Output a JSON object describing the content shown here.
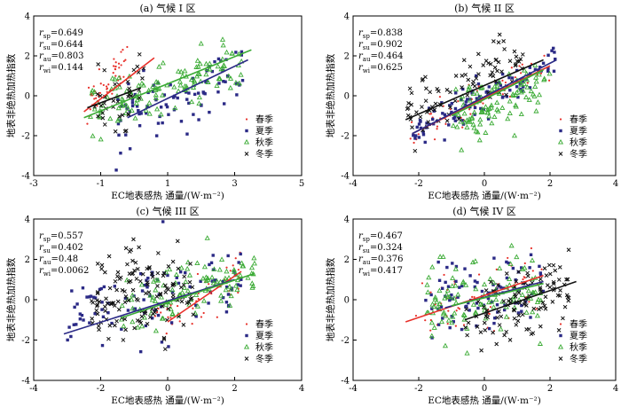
{
  "figure": {
    "title": ""
  },
  "chart_data": [
    {
      "type": "scatter",
      "title": "(a) 气候 I 区",
      "xlabel": "EC地表感热 通量/(W·m⁻²)",
      "ylabel": "地表非绝热加热指数",
      "xlim": [
        -3,
        5
      ],
      "ylim": [
        -4,
        4
      ],
      "xticks": [
        -3,
        -1,
        1,
        3,
        5
      ],
      "yticks": [
        -4,
        -2,
        0,
        2,
        4
      ],
      "stats": [
        {
          "sym": "r",
          "sub": "sp",
          "value": "=0.649"
        },
        {
          "sym": "r",
          "sub": "su",
          "value": "=0.644"
        },
        {
          "sym": "r",
          "sub": "au",
          "value": "=0.803"
        },
        {
          "sym": "r",
          "sub": "wi",
          "value": "=0.144"
        }
      ],
      "legend_position": "bottom-right",
      "series": [
        {
          "name": "春季",
          "marker": "dot",
          "color": "#e8302a",
          "x_range": [
            -1.4,
            -0.2
          ],
          "center": [
            -0.7,
            0.8
          ],
          "slope": 2.0,
          "noise": 0.55,
          "n": 50,
          "fit": [
            [
              -1.5,
              -0.8
            ],
            [
              0.6,
              1.9
            ]
          ]
        },
        {
          "name": "夏季",
          "marker": "square",
          "color": "#2b2a86",
          "x_range": [
            -0.6,
            3.4
          ],
          "center": [
            1.4,
            0.0
          ],
          "slope": 0.62,
          "noise": 0.75,
          "n": 85,
          "fit": [
            [
              -0.2,
              -1.1
            ],
            [
              3.4,
              1.8
            ]
          ]
        },
        {
          "name": "秋季",
          "marker": "triangle",
          "color": "#3bab35",
          "x_range": [
            -1.5,
            3.4
          ],
          "center": [
            0.9,
            0.4
          ],
          "slope": 0.62,
          "noise": 0.65,
          "n": 130,
          "fit": [
            [
              -1.5,
              -1.1
            ],
            [
              3.5,
              2.3
            ]
          ]
        },
        {
          "name": "冬季",
          "marker": "cross",
          "color": "#111111",
          "x_range": [
            -1.2,
            0.3
          ],
          "center": [
            -0.4,
            0.0
          ],
          "slope": 0.2,
          "noise": 1.0,
          "n": 40,
          "fit": [
            [
              -1.4,
              -0.6
            ],
            [
              0.2,
              0.4
            ]
          ]
        }
      ]
    },
    {
      "type": "scatter",
      "title": "(b) 气候 II 区",
      "xlabel": "EC地表感热 通量/(W·m⁻²)",
      "ylabel": "地表非绝热加热指数",
      "xlim": [
        -4,
        4
      ],
      "ylim": [
        -4,
        4
      ],
      "xticks": [
        -4,
        -2,
        0,
        2,
        4
      ],
      "yticks": [
        -4,
        -2,
        0,
        2,
        4
      ],
      "stats": [
        {
          "sym": "r",
          "sub": "sp",
          "value": "=0.838"
        },
        {
          "sym": "r",
          "sub": "su",
          "value": "=0.902"
        },
        {
          "sym": "r",
          "sub": "au",
          "value": "=0.464"
        },
        {
          "sym": "r",
          "sub": "wi",
          "value": "=0.625"
        }
      ],
      "legend_position": "bottom-right",
      "series": [
        {
          "name": "春季",
          "marker": "dot",
          "color": "#e8302a",
          "x_range": [
            -2.3,
            2.0
          ],
          "center": [
            -0.1,
            -0.1
          ],
          "slope": 0.85,
          "noise": 0.5,
          "n": 55,
          "fit": [
            [
              -2.2,
              -1.9
            ],
            [
              2.0,
              1.5
            ]
          ]
        },
        {
          "name": "夏季",
          "marker": "square",
          "color": "#2b2a86",
          "x_range": [
            -2.2,
            2.2
          ],
          "center": [
            0.0,
            0.0
          ],
          "slope": 0.85,
          "noise": 0.45,
          "n": 100,
          "fit": [
            [
              -2.2,
              -1.9
            ],
            [
              2.2,
              1.8
            ]
          ]
        },
        {
          "name": "秋季",
          "marker": "triangle",
          "color": "#3bab35",
          "x_range": [
            -1.0,
            2.0
          ],
          "center": [
            0.6,
            -0.1
          ],
          "slope": 0.7,
          "noise": 0.75,
          "n": 110,
          "fit": [
            [
              -1.0,
              -1.0
            ],
            [
              1.8,
              1.3
            ]
          ]
        },
        {
          "name": "冬季",
          "marker": "cross",
          "color": "#111111",
          "x_range": [
            -2.4,
            1.2
          ],
          "center": [
            -0.6,
            0.5
          ],
          "slope": 0.7,
          "noise": 0.8,
          "n": 90,
          "fit": [
            [
              -2.4,
              -1.2
            ],
            [
              1.8,
              1.8
            ]
          ]
        }
      ]
    },
    {
      "type": "scatter",
      "title": "(c) 气候 III 区",
      "xlabel": "EC地表感热 通量/(W·m⁻²)",
      "ylabel": "地表非绝热加热指数",
      "xlim": [
        -4,
        4
      ],
      "ylim": [
        -4,
        4
      ],
      "xticks": [
        -4,
        -2,
        0,
        2,
        4
      ],
      "yticks": [
        -4,
        -2,
        0,
        2,
        4
      ],
      "stats": [
        {
          "sym": "r",
          "sub": "sp",
          "value": "=0.557"
        },
        {
          "sym": "r",
          "sub": "su",
          "value": "=0.402"
        },
        {
          "sym": "r",
          "sub": "au",
          "value": "=0.48"
        },
        {
          "sym": "r",
          "sub": "wi",
          "value": "=0.0062"
        }
      ],
      "legend_position": "bottom-right",
      "series": [
        {
          "name": "春季",
          "marker": "dot",
          "color": "#e8302a",
          "x_range": [
            -0.4,
            2.2
          ],
          "center": [
            0.9,
            0.0
          ],
          "slope": 0.9,
          "noise": 0.6,
          "n": 45,
          "fit": [
            [
              0.0,
              -1.1
            ],
            [
              2.2,
              1.4
            ]
          ]
        },
        {
          "name": "夏季",
          "marker": "square",
          "color": "#2b2a86",
          "x_range": [
            -3.0,
            2.2
          ],
          "center": [
            -0.4,
            0.1
          ],
          "slope": 0.35,
          "noise": 0.9,
          "n": 100,
          "fit": [
            [
              -3.1,
              -1.7
            ],
            [
              2.0,
              1.0
            ]
          ]
        },
        {
          "name": "秋季",
          "marker": "triangle",
          "color": "#3bab35",
          "x_range": [
            -1.4,
            2.6
          ],
          "center": [
            0.6,
            0.3
          ],
          "slope": 0.45,
          "noise": 0.7,
          "n": 110,
          "fit": [
            [
              -1.4,
              -0.9
            ],
            [
              2.6,
              1.3
            ]
          ]
        },
        {
          "name": "冬季",
          "marker": "cross",
          "color": "#111111",
          "x_range": [
            -2.3,
            0.8
          ],
          "center": [
            -0.7,
            0.3
          ],
          "slope": 0.0,
          "noise": 1.1,
          "n": 140,
          "fit": []
        }
      ]
    },
    {
      "type": "scatter",
      "title": "(d) 气候 IV 区",
      "xlabel": "EC地表感热 通量/(W·m⁻²)",
      "ylabel": "地表非绝热加热指数",
      "xlim": [
        -4,
        4
      ],
      "ylim": [
        -4,
        4
      ],
      "xticks": [
        -4,
        -2,
        0,
        2,
        4
      ],
      "yticks": [
        -4,
        -2,
        0,
        2,
        4
      ],
      "stats": [
        {
          "sym": "r",
          "sub": "sp",
          "value": "=0.467"
        },
        {
          "sym": "r",
          "sub": "su",
          "value": "=0.324"
        },
        {
          "sym": "r",
          "sub": "au",
          "value": "=0.376"
        },
        {
          "sym": "r",
          "sub": "wi",
          "value": "=0.417"
        }
      ],
      "legend_position": "bottom-right",
      "series": [
        {
          "name": "春季",
          "marker": "dot",
          "color": "#e8302a",
          "x_range": [
            -2.3,
            1.8
          ],
          "center": [
            -0.2,
            0.1
          ],
          "slope": 0.45,
          "noise": 0.9,
          "n": 60,
          "fit": [
            [
              -2.4,
              -1.1
            ],
            [
              1.8,
              1.2
            ]
          ]
        },
        {
          "name": "夏季",
          "marker": "square",
          "color": "#2b2a86",
          "x_range": [
            -1.8,
            1.8
          ],
          "center": [
            0.0,
            0.2
          ],
          "slope": 0.35,
          "noise": 0.9,
          "n": 90,
          "fit": [
            [
              -1.2,
              -0.4
            ],
            [
              1.8,
              0.9
            ]
          ]
        },
        {
          "name": "秋季",
          "marker": "triangle",
          "color": "#3bab35",
          "x_range": [
            -1.8,
            1.8
          ],
          "center": [
            0.0,
            0.1
          ],
          "slope": 0.3,
          "noise": 0.95,
          "n": 110,
          "fit": [
            [
              -1.0,
              -0.3
            ],
            [
              1.8,
              0.8
            ]
          ]
        },
        {
          "name": "冬季",
          "marker": "cross",
          "color": "#111111",
          "x_range": [
            -0.6,
            2.6
          ],
          "center": [
            1.0,
            -0.1
          ],
          "slope": 0.5,
          "noise": 0.85,
          "n": 110,
          "fit": [
            [
              -0.6,
              -1.0
            ],
            [
              2.8,
              0.9
            ]
          ]
        }
      ]
    }
  ]
}
